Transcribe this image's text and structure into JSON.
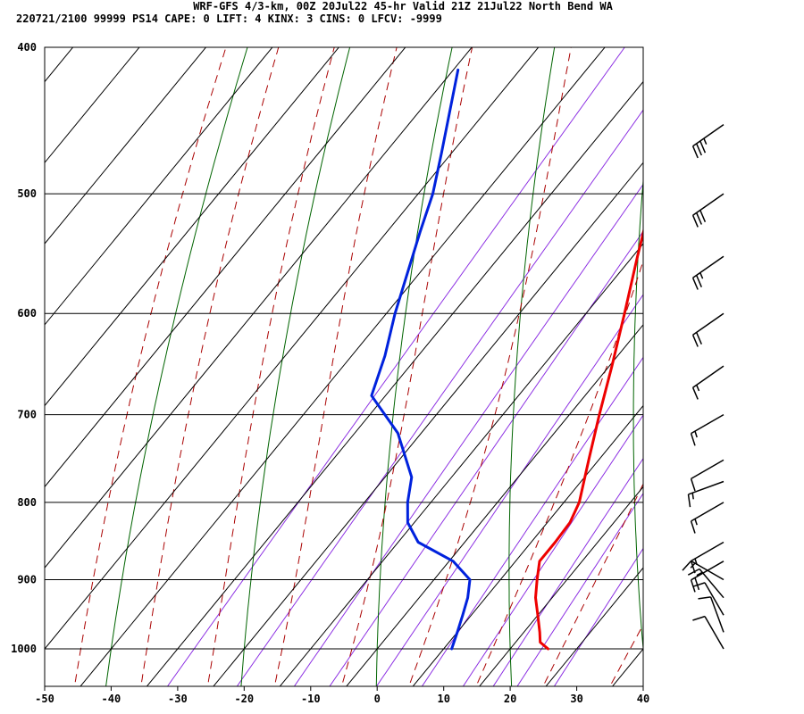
{
  "header": {
    "line1": "WRF-GFS 4/3-km, 00Z 20Jul22 45-hr Valid 21Z 21Jul22 North Bend WA",
    "line2": "220721/2100 99999  PS14    CAPE:     0 LIFT:     4 KINX:     3 CINS:     0 LFCV: -9999"
  },
  "chart_data": {
    "type": "line",
    "title": "WRF-GFS 4/3-km, 00Z 20Jul22 45-hr Valid 21Z 21Jul22 North Bend WA",
    "subtitle": "220721/2100 99999  PS14    CAPE:     0 LIFT:     4 KINX:     3 CINS:     0 LFCV: -9999",
    "diagram": "skew-T log-P",
    "xlabel": "",
    "ylabel": "",
    "xlim": [
      -50,
      40
    ],
    "pressure_range_hPa": [
      400,
      1000
    ],
    "x_ticks": [
      -50,
      -40,
      -30,
      -20,
      -10,
      0,
      10,
      20,
      30,
      40
    ],
    "pressure_ticks": [
      400,
      500,
      600,
      700,
      800,
      900,
      1000
    ],
    "isotherm_step_C": 10,
    "grid": true,
    "colors": {
      "temperature": "#ee0000",
      "dewpoint": "#0022dd",
      "isotherm": "#000000",
      "dry_adiabat": "#006400",
      "moist_adiabat": "#aa0000",
      "mixing_ratio": "#8a2be2",
      "wind_barb": "#000000"
    },
    "series": [
      {
        "variable": "temperature",
        "points": [
          {
            "p": 1000,
            "t": 25.7
          },
          {
            "p": 990,
            "t": 23.7
          },
          {
            "p": 975,
            "t": 22.4
          },
          {
            "p": 950,
            "t": 20.0
          },
          {
            "p": 925,
            "t": 17.5
          },
          {
            "p": 900,
            "t": 15.5
          },
          {
            "p": 875,
            "t": 13.6
          },
          {
            "p": 850,
            "t": 13.6
          },
          {
            "p": 825,
            "t": 13.4
          },
          {
            "p": 800,
            "t": 12.3
          },
          {
            "p": 750,
            "t": 8.5
          },
          {
            "p": 700,
            "t": 4.5
          },
          {
            "p": 650,
            "t": 0.4
          },
          {
            "p": 600,
            "t": -4.2
          },
          {
            "p": 550,
            "t": -9.3
          },
          {
            "p": 500,
            "t": -14.7
          },
          {
            "p": 450,
            "t": -20.8
          },
          {
            "p": 414,
            "t": -25.8
          }
        ]
      },
      {
        "variable": "dewpoint",
        "points": [
          {
            "p": 1000,
            "t": 11.2
          },
          {
            "p": 975,
            "t": 10.0
          },
          {
            "p": 950,
            "t": 8.7
          },
          {
            "p": 925,
            "t": 7.3
          },
          {
            "p": 900,
            "t": 5.4
          },
          {
            "p": 875,
            "t": 0.6
          },
          {
            "p": 850,
            "t": -7.0
          },
          {
            "p": 825,
            "t": -11.0
          },
          {
            "p": 800,
            "t": -13.5
          },
          {
            "p": 770,
            "t": -16.0
          },
          {
            "p": 720,
            "t": -23.5
          },
          {
            "p": 680,
            "t": -32.1
          },
          {
            "p": 640,
            "t": -35.0
          },
          {
            "p": 600,
            "t": -38.7
          },
          {
            "p": 530,
            "t": -45.0
          },
          {
            "p": 500,
            "t": -47.8
          },
          {
            "p": 470,
            "t": -51.5
          },
          {
            "p": 414,
            "t": -59.3
          }
        ]
      }
    ],
    "wind_barbs": [
      {
        "p": 1000,
        "dir": 330,
        "kt": 10
      },
      {
        "p": 975,
        "dir": 340,
        "kt": 10
      },
      {
        "p": 950,
        "dir": 330,
        "kt": 10
      },
      {
        "p": 925,
        "dir": 320,
        "kt": 15
      },
      {
        "p": 900,
        "dir": 300,
        "kt": 15
      },
      {
        "p": 875,
        "dir": 240,
        "kt": 20
      },
      {
        "p": 850,
        "dir": 240,
        "kt": 15
      },
      {
        "p": 800,
        "dir": 240,
        "kt": 15
      },
      {
        "p": 775,
        "dir": 250,
        "kt": 15
      },
      {
        "p": 750,
        "dir": 240,
        "kt": 10
      },
      {
        "p": 700,
        "dir": 240,
        "kt": 15
      },
      {
        "p": 650,
        "dir": 235,
        "kt": 15
      },
      {
        "p": 600,
        "dir": 235,
        "kt": 20
      },
      {
        "p": 550,
        "dir": 235,
        "kt": 25
      },
      {
        "p": 500,
        "dir": 235,
        "kt": 30
      },
      {
        "p": 450,
        "dir": 235,
        "kt": 35
      }
    ]
  }
}
